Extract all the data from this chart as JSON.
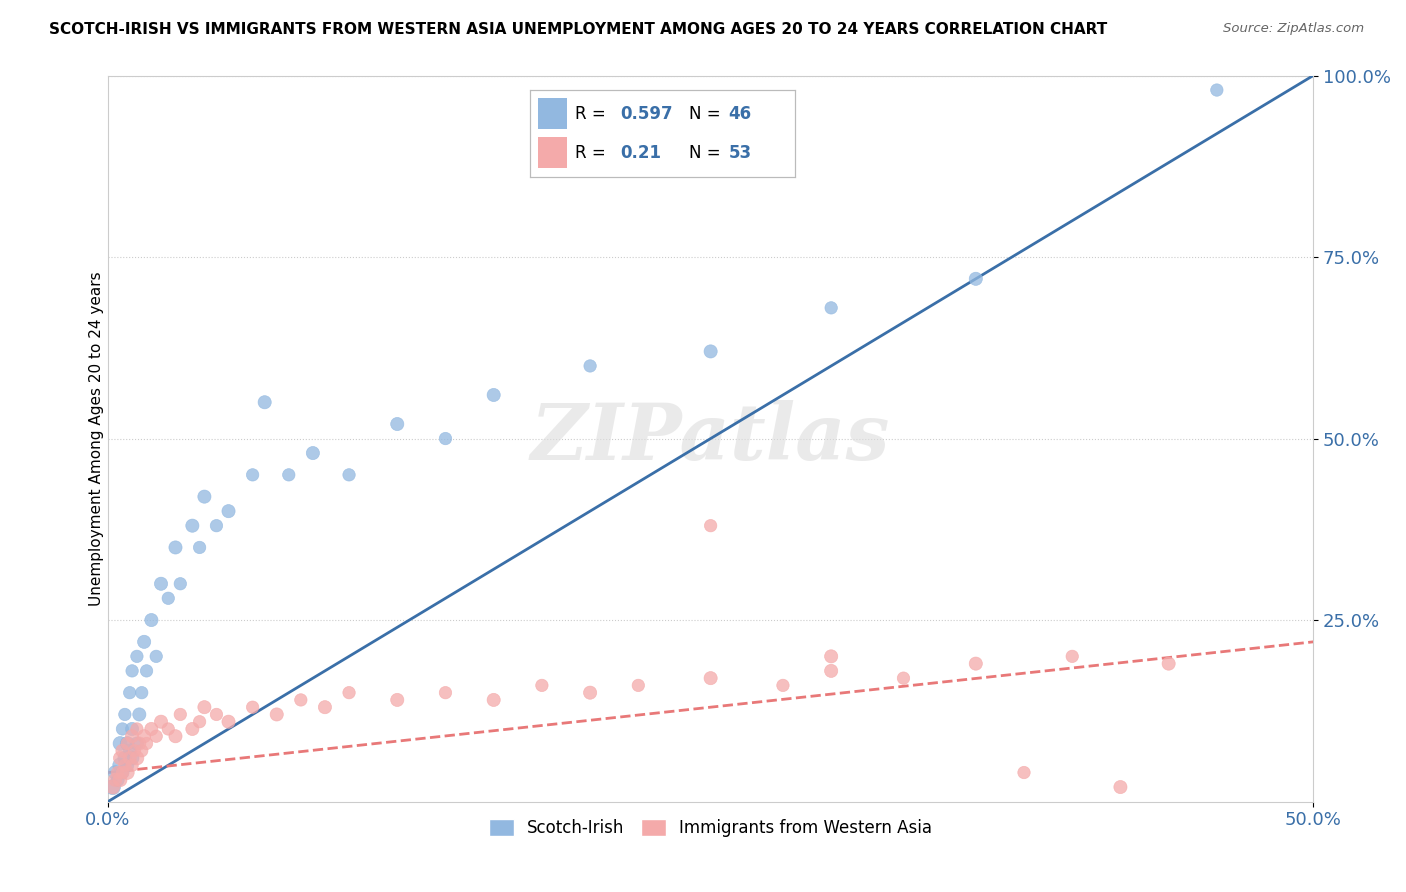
{
  "title": "SCOTCH-IRISH VS IMMIGRANTS FROM WESTERN ASIA UNEMPLOYMENT AMONG AGES 20 TO 24 YEARS CORRELATION CHART",
  "source": "Source: ZipAtlas.com",
  "ylabel": "Unemployment Among Ages 20 to 24 years",
  "xmin": 0.0,
  "xmax": 0.5,
  "ymin": 0.0,
  "ymax": 1.0,
  "R_blue": 0.597,
  "N_blue": 46,
  "R_pink": 0.21,
  "N_pink": 53,
  "blue_color": "#92B8E0",
  "pink_color": "#F4AAAA",
  "blue_line_color": "#3A6FA8",
  "pink_line_color": "#E87878",
  "watermark": "ZIPatlas",
  "legend_scotch": "Scotch-Irish",
  "legend_western_asia": "Immigrants from Western Asia",
  "blue_scatter_x": [
    0.002,
    0.003,
    0.004,
    0.005,
    0.005,
    0.006,
    0.006,
    0.007,
    0.007,
    0.008,
    0.008,
    0.009,
    0.009,
    0.01,
    0.01,
    0.01,
    0.012,
    0.012,
    0.013,
    0.014,
    0.015,
    0.016,
    0.018,
    0.02,
    0.022,
    0.025,
    0.028,
    0.03,
    0.035,
    0.038,
    0.04,
    0.045,
    0.05,
    0.06,
    0.065,
    0.075,
    0.085,
    0.1,
    0.12,
    0.14,
    0.16,
    0.2,
    0.25,
    0.3,
    0.36,
    0.46
  ],
  "blue_scatter_y": [
    0.02,
    0.04,
    0.03,
    0.05,
    0.08,
    0.04,
    0.1,
    0.06,
    0.12,
    0.05,
    0.08,
    0.07,
    0.15,
    0.06,
    0.1,
    0.18,
    0.08,
    0.2,
    0.12,
    0.15,
    0.22,
    0.18,
    0.25,
    0.2,
    0.3,
    0.28,
    0.35,
    0.3,
    0.38,
    0.35,
    0.42,
    0.38,
    0.4,
    0.45,
    0.55,
    0.45,
    0.48,
    0.45,
    0.52,
    0.5,
    0.56,
    0.6,
    0.62,
    0.68,
    0.72,
    0.98
  ],
  "blue_scatter_sizes": [
    120,
    100,
    90,
    110,
    100,
    90,
    80,
    100,
    80,
    90,
    100,
    90,
    80,
    100,
    90,
    80,
    90,
    80,
    90,
    80,
    90,
    80,
    90,
    80,
    90,
    80,
    90,
    80,
    90,
    80,
    90,
    80,
    90,
    80,
    90,
    80,
    90,
    80,
    90,
    80,
    90,
    80,
    90,
    80,
    90,
    80
  ],
  "pink_scatter_x": [
    0.002,
    0.003,
    0.004,
    0.005,
    0.005,
    0.006,
    0.006,
    0.007,
    0.008,
    0.008,
    0.009,
    0.01,
    0.01,
    0.011,
    0.012,
    0.012,
    0.013,
    0.014,
    0.015,
    0.016,
    0.018,
    0.02,
    0.022,
    0.025,
    0.028,
    0.03,
    0.035,
    0.038,
    0.04,
    0.045,
    0.05,
    0.06,
    0.07,
    0.08,
    0.09,
    0.1,
    0.12,
    0.14,
    0.16,
    0.18,
    0.2,
    0.22,
    0.25,
    0.28,
    0.3,
    0.33,
    0.36,
    0.4,
    0.44,
    0.25,
    0.3,
    0.38,
    0.42
  ],
  "pink_scatter_y": [
    0.02,
    0.03,
    0.04,
    0.03,
    0.06,
    0.04,
    0.07,
    0.05,
    0.04,
    0.08,
    0.06,
    0.05,
    0.09,
    0.07,
    0.06,
    0.1,
    0.08,
    0.07,
    0.09,
    0.08,
    0.1,
    0.09,
    0.11,
    0.1,
    0.09,
    0.12,
    0.1,
    0.11,
    0.13,
    0.12,
    0.11,
    0.13,
    0.12,
    0.14,
    0.13,
    0.15,
    0.14,
    0.15,
    0.14,
    0.16,
    0.15,
    0.16,
    0.17,
    0.16,
    0.18,
    0.17,
    0.19,
    0.2,
    0.19,
    0.38,
    0.2,
    0.04,
    0.02
  ],
  "pink_scatter_sizes": [
    100,
    90,
    80,
    100,
    90,
    80,
    90,
    80,
    100,
    80,
    90,
    80,
    90,
    80,
    100,
    80,
    90,
    80,
    90,
    80,
    90,
    80,
    90,
    80,
    90,
    80,
    90,
    80,
    90,
    80,
    90,
    80,
    90,
    80,
    90,
    80,
    90,
    80,
    90,
    80,
    90,
    80,
    90,
    80,
    90,
    80,
    90,
    80,
    90,
    80,
    90,
    80,
    90
  ],
  "blue_line_x": [
    0.0,
    0.5
  ],
  "blue_line_y": [
    0.0,
    1.0
  ],
  "pink_line_x": [
    0.0,
    0.5
  ],
  "pink_line_y": [
    0.04,
    0.22
  ]
}
